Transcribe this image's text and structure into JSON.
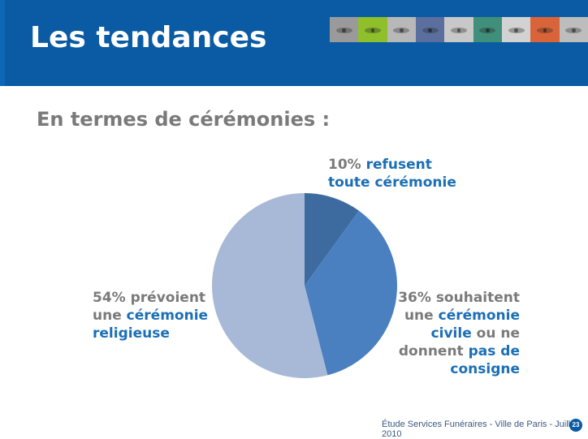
{
  "slide": {
    "title": "Les tendances",
    "subtitle": "En termes de cérémonies :",
    "footer": "Étude Services Funéraires - Ville de Paris - Juillet 2010",
    "page_number": "23"
  },
  "photo_strip": [
    {
      "name": "eyes-photo-1",
      "color": "#9a9a9a"
    },
    {
      "name": "eyes-photo-2",
      "color": "#8fbf2a"
    },
    {
      "name": "eyes-photo-3",
      "color": "#b8b8b8"
    },
    {
      "name": "eyes-photo-4",
      "color": "#5b6f9e"
    },
    {
      "name": "eyes-photo-5",
      "color": "#c8c8c8"
    },
    {
      "name": "eyes-photo-6",
      "color": "#3f8f7a"
    },
    {
      "name": "eyes-photo-7",
      "color": "#d2d2d2"
    },
    {
      "name": "eyes-photo-8",
      "color": "#d9643a"
    },
    {
      "name": "eyes-photo-9",
      "color": "#bdbdbd"
    }
  ],
  "labels": {
    "refuse": {
      "pct": "10%",
      "l1": "refusent",
      "l2": "toute cérémonie"
    },
    "civile": {
      "pct": "36%",
      "l1a": "souhaitent",
      "l2a": "une",
      "l2b": "cérémonie",
      "l3a": "civile",
      "l3b": "ou ne",
      "l4a": "donnent",
      "l4b": "pas de",
      "l5": "consigne"
    },
    "religieuse": {
      "pct": "54%",
      "l1a": "prévoient",
      "l2a": "une",
      "l2b": "cérémonie",
      "l3": "religieuse"
    }
  },
  "chart_data": {
    "type": "pie",
    "title": "",
    "slices": [
      {
        "label": "refusent toute cérémonie",
        "value": 10,
        "color": "#3d6b9f"
      },
      {
        "label": "souhaitent une cérémonie civile ou ne donnent pas de consigne",
        "value": 36,
        "color": "#4a80c0"
      },
      {
        "label": "prévoient une cérémonie religieuse",
        "value": 54,
        "color": "#a8b9d8"
      }
    ]
  }
}
